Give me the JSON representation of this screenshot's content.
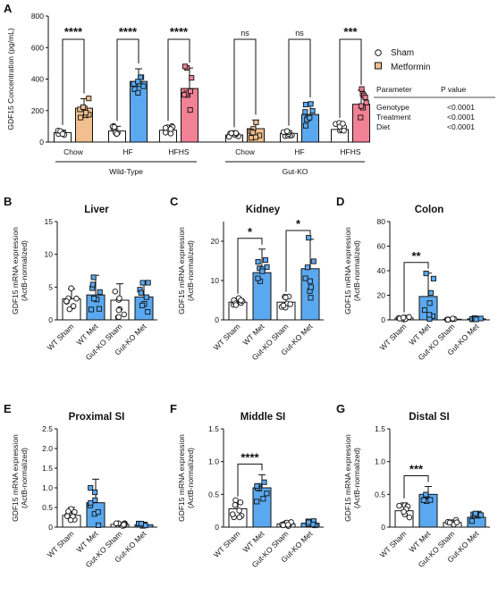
{
  "colors": {
    "sham": "#ffffff",
    "metformin": "#f2c08e",
    "hf_met": "#5aa9f0",
    "hfhs_met": "#f28195",
    "wt_met": "#5aa9f0",
    "gutko_met": "#5aa9f0",
    "marker_fill_sham": "#ffffff",
    "marker_fill_met": "#1d4e89"
  },
  "legend": {
    "sham": "Sham",
    "metformin": "Metformin"
  },
  "pvalue_table": {
    "header": [
      "Parameter",
      "P value"
    ],
    "rows": [
      [
        "Genotype",
        "<0.0001"
      ],
      [
        "Treatment",
        "<0.0001"
      ],
      [
        "Diet",
        "<0.0001"
      ]
    ]
  },
  "chart_data": [
    {
      "panel": "A",
      "type": "bar",
      "ylabel": "GDF15 Concentration (pg/mL)",
      "ylim": [
        0,
        800
      ],
      "yticks": [
        "0",
        "200",
        "400",
        "600",
        "800"
      ],
      "groups": [
        "Wild-Type",
        "Gut-KO"
      ],
      "categories": [
        "Chow",
        "HF",
        "HFHS",
        "Chow",
        "HF",
        "HFHS"
      ],
      "series": [
        {
          "name": "Sham",
          "values": [
            60,
            70,
            75,
            45,
            55,
            80
          ],
          "errors": [
            15,
            30,
            25,
            15,
            15,
            40
          ]
        },
        {
          "name": "Metformin",
          "values": [
            215,
            385,
            340,
            85,
            175,
            240
          ],
          "errors": [
            60,
            80,
            130,
            55,
            75,
            90
          ]
        }
      ],
      "significance": [
        "****",
        "****",
        "****",
        "ns",
        "ns",
        "***"
      ]
    },
    {
      "panel": "B",
      "type": "bar",
      "title": "Liver",
      "ylabel": "GDF15 mRNA expression (ActB-normalized)",
      "ylim": [
        0,
        15
      ],
      "yticks": [
        "0",
        "5",
        "10",
        "15"
      ],
      "categories": [
        "WT Sham",
        "WT Met",
        "Gut-KO Sham",
        "Gut-KO Met"
      ],
      "values": [
        3.2,
        3.8,
        3.0,
        3.5
      ],
      "errors": [
        1.5,
        3.0,
        2.5,
        2.2
      ],
      "significance": []
    },
    {
      "panel": "C",
      "type": "bar",
      "title": "Kidney",
      "ylabel": "GDF15 mRNA expression (ActB-normalized)",
      "ylim": [
        0,
        25
      ],
      "yticks": [
        "0",
        "10",
        "20"
      ],
      "categories": [
        "WT Sham",
        "WT Met",
        "Gut-KO Sham",
        "Gut-KO Met"
      ],
      "values": [
        4.5,
        12.0,
        4.5,
        13.0
      ],
      "errors": [
        1.0,
        6.0,
        1.5,
        7.5
      ],
      "significance": [
        {
          "pair": [
            0,
            1
          ],
          "label": "*"
        },
        {
          "pair": [
            2,
            3
          ],
          "label": "*"
        }
      ]
    },
    {
      "panel": "D",
      "type": "bar",
      "title": "Colon",
      "ylabel": "GDF15 mRNA expression (ActB-normalized)",
      "ylim": [
        0,
        80
      ],
      "yticks": [
        "0",
        "20",
        "40",
        "60",
        "80"
      ],
      "categories": [
        "WT Sham",
        "WT Met",
        "Gut-KO Sham",
        "Gut-KO Met"
      ],
      "values": [
        1.5,
        19.0,
        0.5,
        0.8
      ],
      "errors": [
        1.0,
        19.0,
        0.5,
        0.8
      ],
      "significance": [
        {
          "pair": [
            0,
            1
          ],
          "label": "**"
        }
      ]
    },
    {
      "panel": "E",
      "type": "bar",
      "title": "Proximal SI",
      "ylabel": "GDF15 mRNA expression (ActB-normalized)",
      "ylim": [
        0,
        2.5
      ],
      "yticks": [
        "0",
        "0.5",
        "1.0",
        "1.5",
        "2.0",
        "2.5"
      ],
      "categories": [
        "WT Sham",
        "WT Met",
        "Gut-KO Sham",
        "Gut-KO Met"
      ],
      "values": [
        0.3,
        0.62,
        0.07,
        0.06
      ],
      "errors": [
        0.2,
        0.6,
        0.04,
        0.03
      ],
      "significance": []
    },
    {
      "panel": "F",
      "type": "bar",
      "title": "Middle SI",
      "ylabel": "GDF15 mRNA expression (ActB-normalized)",
      "ylim": [
        0,
        1.5
      ],
      "yticks": [
        "0",
        "0.5",
        "1.0",
        "1.5"
      ],
      "categories": [
        "WT Sham",
        "WT Met",
        "Gut-KO Sham",
        "Gut-KO Met"
      ],
      "values": [
        0.28,
        0.6,
        0.05,
        0.06
      ],
      "errors": [
        0.12,
        0.2,
        0.03,
        0.03
      ],
      "significance": [
        {
          "pair": [
            0,
            1
          ],
          "label": "****"
        }
      ]
    },
    {
      "panel": "G",
      "type": "bar",
      "title": "Distal SI",
      "ylabel": "GDF15 mRNA expression (ActB-normalized)",
      "ylim": [
        0,
        1.5
      ],
      "yticks": [
        "0",
        "0.5",
        "1.0",
        "1.5"
      ],
      "categories": [
        "WT Sham",
        "WT Met",
        "Gut-KO Sham",
        "Gut-KO Met"
      ],
      "values": [
        0.25,
        0.5,
        0.07,
        0.15
      ],
      "errors": [
        0.12,
        0.12,
        0.04,
        0.07
      ],
      "significance": [
        {
          "pair": [
            0,
            1
          ],
          "label": "***"
        }
      ]
    }
  ]
}
